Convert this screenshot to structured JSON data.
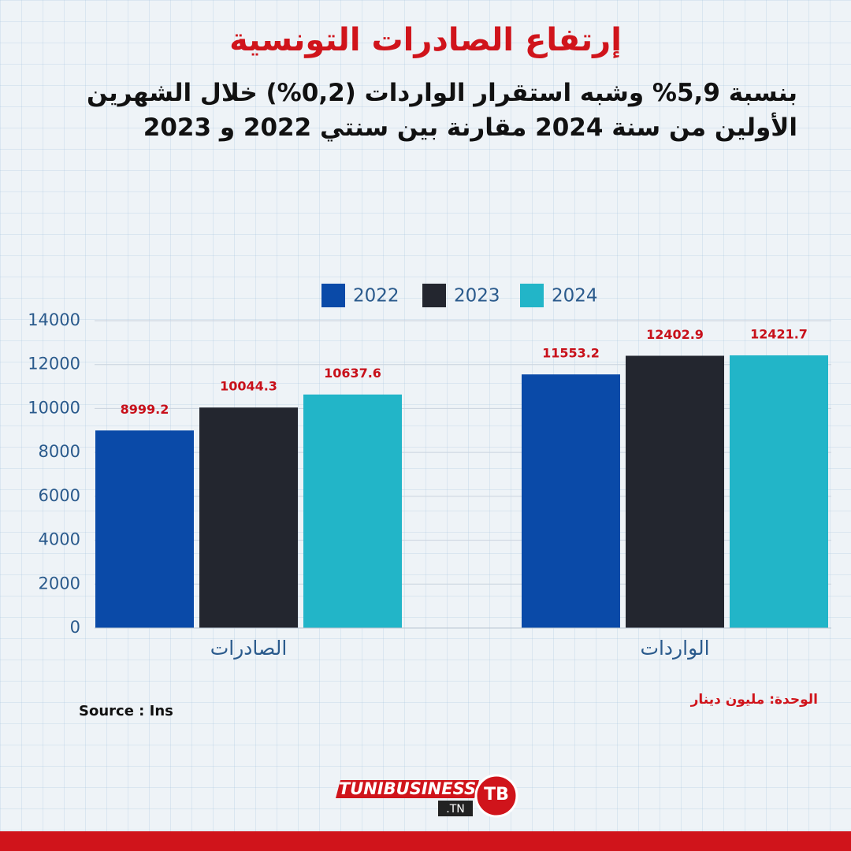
{
  "chart_data": {
    "type": "bar",
    "title": "إرتفاع الصادرات التونسية",
    "subtitle_lines": [
      "بنسبة 5,9% وشبه استقرار الواردات (0,2%) خلال الشهرين",
      "الأولين من سنة 2024 مقارنة بين سنتي 2022 و 2023"
    ],
    "categories": [
      "الصادرات",
      "الواردات"
    ],
    "series": [
      {
        "name": "2022",
        "color": "#0a4aa8",
        "values": [
          8999.2,
          11553.2
        ]
      },
      {
        "name": "2023",
        "color": "#23262f",
        "values": [
          10044.3,
          12402.9
        ]
      },
      {
        "name": "2024",
        "color": "#22b5c8",
        "values": [
          10637.6,
          12421.7
        ]
      }
    ],
    "ylim": [
      0,
      14000
    ],
    "yticks": [
      0,
      2000,
      4000,
      6000,
      8000,
      10000,
      12000,
      14000
    ],
    "grid": true,
    "legend": "top",
    "source": "Source : Ins",
    "unit_note": "الوحدة: مليون دينار",
    "logo": {
      "name": "TUNIBUSINESS",
      "domain": ".TN",
      "badge": "TB"
    }
  }
}
